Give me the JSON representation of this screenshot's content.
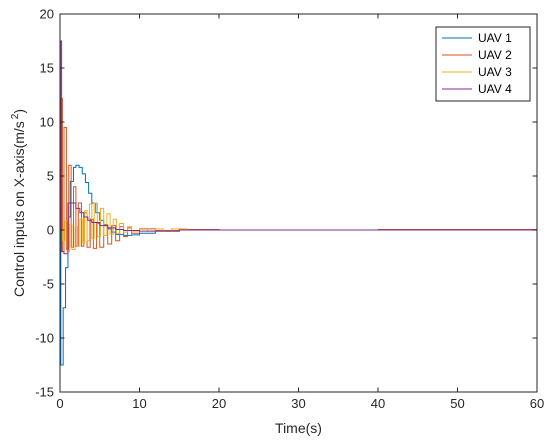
{
  "chart_data": {
    "type": "line",
    "title": "",
    "xlabel": "Time(s)",
    "ylabel_main": "Control inputs on X-axis(m/s",
    "ylabel_sup": "2",
    "ylabel_close": ")",
    "xlim": [
      0,
      60
    ],
    "ylim": [
      -15,
      20
    ],
    "xticks": [
      0,
      10,
      20,
      30,
      40,
      50,
      60
    ],
    "yticks": [
      -15,
      -10,
      -5,
      0,
      5,
      10,
      15,
      20
    ],
    "grid": false,
    "legend_position": "top-right",
    "series": [
      {
        "name": "UAV 1",
        "color": "#0072BD",
        "points": [
          [
            0,
            0
          ],
          [
            0.1,
            -12.5
          ],
          [
            0.4,
            -7.2
          ],
          [
            0.7,
            -3.5
          ],
          [
            1.0,
            1.2
          ],
          [
            1.3,
            4.5
          ],
          [
            1.7,
            5.8
          ],
          [
            2.0,
            6.0
          ],
          [
            2.4,
            5.8
          ],
          [
            2.8,
            5.2
          ],
          [
            3.2,
            4.4
          ],
          [
            3.6,
            3.4
          ],
          [
            4.0,
            2.5
          ],
          [
            4.5,
            1.6
          ],
          [
            5.0,
            0.9
          ],
          [
            5.5,
            0.4
          ],
          [
            6.0,
            0.1
          ],
          [
            6.5,
            -0.2
          ],
          [
            7.0,
            -0.4
          ],
          [
            8.0,
            -0.5
          ],
          [
            9.0,
            -0.45
          ],
          [
            10.0,
            -0.3
          ],
          [
            12.0,
            -0.1
          ],
          [
            15.0,
            0.0
          ],
          [
            25.0,
            0.0
          ],
          [
            40.0,
            0.0
          ],
          [
            60.0,
            0.0
          ]
        ]
      },
      {
        "name": "UAV 2",
        "color": "#D95319",
        "points": [
          [
            0,
            0
          ],
          [
            0.1,
            12.2
          ],
          [
            0.3,
            -2.0
          ],
          [
            0.5,
            9.5
          ],
          [
            0.8,
            -1.8
          ],
          [
            1.1,
            6.0
          ],
          [
            1.4,
            -1.6
          ],
          [
            1.7,
            4.0
          ],
          [
            2.0,
            -1.5
          ],
          [
            2.3,
            2.5
          ],
          [
            2.7,
            -1.5
          ],
          [
            3.0,
            1.6
          ],
          [
            3.4,
            -1.6
          ],
          [
            3.8,
            1.0
          ],
          [
            4.2,
            -1.7
          ],
          [
            4.6,
            0.6
          ],
          [
            5.0,
            -1.6
          ],
          [
            5.5,
            0.5
          ],
          [
            6.0,
            -1.3
          ],
          [
            6.5,
            0.4
          ],
          [
            7.0,
            -1.0
          ],
          [
            7.5,
            0.3
          ],
          [
            8.0,
            -0.6
          ],
          [
            8.5,
            0.2
          ],
          [
            9.0,
            -0.3
          ],
          [
            10.0,
            0.1
          ],
          [
            12.0,
            -0.05
          ],
          [
            15.0,
            0.05
          ],
          [
            20.0,
            0.0
          ],
          [
            40.0,
            0.05
          ],
          [
            60.0,
            0.1
          ]
        ]
      },
      {
        "name": "UAV 3",
        "color": "#EDB120",
        "points": [
          [
            0,
            0
          ],
          [
            0.3,
            -1.0
          ],
          [
            0.6,
            0.8
          ],
          [
            0.9,
            -2.0
          ],
          [
            1.2,
            0.5
          ],
          [
            1.5,
            -1.8
          ],
          [
            1.9,
            0.3
          ],
          [
            2.2,
            -1.5
          ],
          [
            2.5,
            1.0
          ],
          [
            2.8,
            -1.2
          ],
          [
            3.1,
            1.8
          ],
          [
            3.4,
            -1.0
          ],
          [
            3.7,
            2.4
          ],
          [
            4.0,
            -0.8
          ],
          [
            4.3,
            2.5
          ],
          [
            4.7,
            -0.6
          ],
          [
            5.1,
            2.0
          ],
          [
            5.5,
            -0.5
          ],
          [
            5.9,
            1.5
          ],
          [
            6.3,
            -0.4
          ],
          [
            6.7,
            1.0
          ],
          [
            7.1,
            -0.3
          ],
          [
            7.5,
            0.6
          ],
          [
            8.0,
            -0.2
          ],
          [
            8.5,
            0.3
          ],
          [
            9.0,
            -0.1
          ],
          [
            10.0,
            0.15
          ],
          [
            11.0,
            -0.1
          ],
          [
            12.0,
            0.1
          ],
          [
            13.0,
            -0.1
          ],
          [
            14.0,
            0.1
          ],
          [
            16.0,
            0.0
          ],
          [
            20.0,
            0.0
          ],
          [
            60.0,
            0.0
          ]
        ]
      },
      {
        "name": "UAV 4",
        "color": "#7E2F8E",
        "points": [
          [
            0,
            0
          ],
          [
            0.05,
            17.5
          ],
          [
            0.2,
            -2.0
          ],
          [
            0.5,
            -2.2
          ],
          [
            0.9,
            -2.2
          ],
          [
            1.0,
            2.5
          ],
          [
            1.5,
            2.5
          ],
          [
            2.0,
            2.0
          ],
          [
            2.5,
            1.6
          ],
          [
            3.0,
            1.2
          ],
          [
            3.5,
            0.9
          ],
          [
            4.0,
            0.7
          ],
          [
            5.0,
            0.4
          ],
          [
            6.0,
            0.2
          ],
          [
            7.0,
            0.05
          ],
          [
            8.0,
            -0.05
          ],
          [
            10.0,
            -0.1
          ],
          [
            15.0,
            0.0
          ],
          [
            30.0,
            0.0
          ],
          [
            60.0,
            0.0
          ]
        ]
      }
    ]
  }
}
